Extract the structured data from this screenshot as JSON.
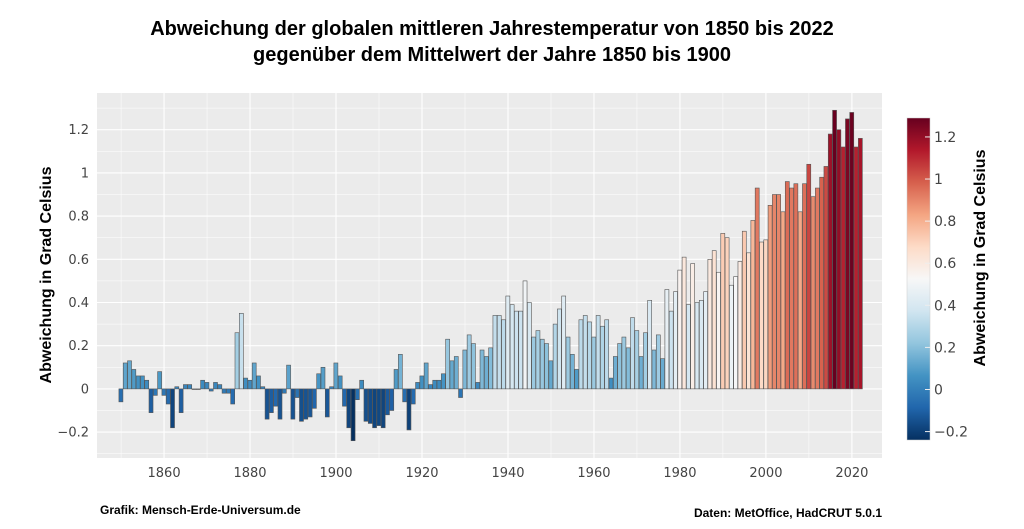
{
  "chart_data": {
    "type": "bar",
    "title": [
      "Abweichung der globalen mittleren Jahrestemperatur von 1850 bis 2022",
      "gegenüber dem Mittelwert der Jahre 1850 bis 1900"
    ],
    "xlabel": "",
    "ylabel": "Abweichung in Grad Celsius",
    "colorbar_label": "Abweichung in Grad Celsius",
    "colormap": "RdBu (reversed): blue = low, white = mid, dark red = high",
    "colormap_stops": [
      "#053061",
      "#2166ac",
      "#4393c3",
      "#92c5de",
      "#d1e5f0",
      "#f7f7f7",
      "#fddbc7",
      "#f4a582",
      "#d6604d",
      "#b2182b",
      "#67001f"
    ],
    "colorbar_range": [
      -0.24,
      1.29
    ],
    "colorbar_ticks": [
      "1.2",
      "1",
      "0.8",
      "0.6",
      "0.4",
      "0.2",
      "0",
      "−0.2"
    ],
    "xlim": [
      1844.4,
      2027
    ],
    "ylim": [
      -0.32,
      1.37
    ],
    "x_ticks": [
      "1860",
      "1880",
      "1900",
      "1920",
      "1940",
      "1960",
      "1980",
      "2000",
      "2020"
    ],
    "y_ticks": [
      "−0.2",
      "0",
      "0.2",
      "0.4",
      "0.6",
      "0.8",
      "1",
      "1.2"
    ],
    "grid": true,
    "panel_background": "#ebebeb",
    "x_start": 1850,
    "x_end": 2022,
    "values": [
      -0.06,
      0.12,
      0.13,
      0.09,
      0.06,
      0.06,
      0.04,
      -0.11,
      -0.03,
      0.08,
      -0.03,
      -0.07,
      -0.18,
      0.01,
      -0.11,
      0.02,
      0.02,
      0.0,
      0.0,
      0.04,
      0.03,
      -0.01,
      0.03,
      0.02,
      -0.02,
      -0.02,
      -0.07,
      0.26,
      0.35,
      0.05,
      0.04,
      0.12,
      0.06,
      0.01,
      -0.14,
      -0.11,
      -0.08,
      -0.14,
      -0.02,
      0.11,
      -0.14,
      -0.04,
      -0.15,
      -0.14,
      -0.13,
      -0.09,
      0.07,
      0.1,
      -0.13,
      0.01,
      0.12,
      0.06,
      -0.08,
      -0.18,
      -0.24,
      -0.05,
      0.04,
      -0.15,
      -0.16,
      -0.18,
      -0.17,
      -0.18,
      -0.12,
      -0.1,
      0.09,
      0.16,
      -0.06,
      -0.19,
      -0.07,
      0.03,
      0.06,
      0.12,
      0.02,
      0.04,
      0.04,
      0.07,
      0.23,
      0.13,
      0.15,
      -0.04,
      0.18,
      0.25,
      0.21,
      0.03,
      0.18,
      0.15,
      0.19,
      0.34,
      0.34,
      0.32,
      0.43,
      0.39,
      0.36,
      0.36,
      0.5,
      0.4,
      0.24,
      0.27,
      0.23,
      0.21,
      0.13,
      0.3,
      0.37,
      0.43,
      0.24,
      0.16,
      0.09,
      0.32,
      0.34,
      0.31,
      0.24,
      0.34,
      0.29,
      0.32,
      0.05,
      0.15,
      0.21,
      0.24,
      0.19,
      0.33,
      0.27,
      0.15,
      0.26,
      0.41,
      0.18,
      0.25,
      0.14,
      0.46,
      0.36,
      0.45,
      0.55,
      0.61,
      0.39,
      0.58,
      0.4,
      0.41,
      0.45,
      0.6,
      0.64,
      0.54,
      0.72,
      0.7,
      0.48,
      0.52,
      0.59,
      0.73,
      0.63,
      0.78,
      0.93,
      0.68,
      0.69,
      0.85,
      0.9,
      0.9,
      0.82,
      0.96,
      0.93,
      0.95,
      0.82,
      0.95,
      1.04,
      0.89,
      0.93,
      0.98,
      1.03,
      1.18,
      1.29,
      1.2,
      1.12,
      1.25,
      1.28,
      1.12,
      1.16
    ]
  },
  "footer": {
    "credit": "Grafik: Mensch-Erde-Universum.de",
    "source": "Daten: MetOffice, HadCRUT 5.0.1"
  }
}
